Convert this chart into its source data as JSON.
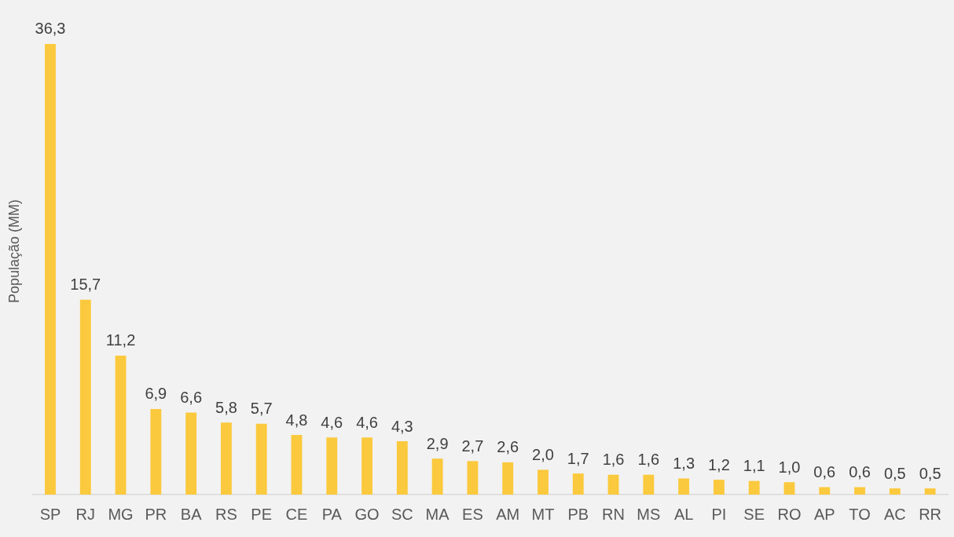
{
  "chart_data": {
    "type": "bar",
    "ylabel": "População (MM)",
    "categories": [
      "SP",
      "RJ",
      "MG",
      "PR",
      "BA",
      "RS",
      "PE",
      "CE",
      "PA",
      "GO",
      "SC",
      "MA",
      "ES",
      "AM",
      "MT",
      "PB",
      "RN",
      "MS",
      "AL",
      "PI",
      "SE",
      "RO",
      "AP",
      "TO",
      "AC",
      "RR"
    ],
    "values": [
      36.3,
      15.7,
      11.2,
      6.9,
      6.6,
      5.8,
      5.7,
      4.8,
      4.6,
      4.6,
      4.3,
      2.9,
      2.7,
      2.6,
      2.0,
      1.7,
      1.6,
      1.6,
      1.3,
      1.2,
      1.1,
      1.0,
      0.6,
      0.6,
      0.5,
      0.5
    ],
    "value_labels": [
      "36,3",
      "15,7",
      "11,2",
      "6,9",
      "6,6",
      "5,8",
      "5,7",
      "4,8",
      "4,6",
      "4,6",
      "4,3",
      "2,9",
      "2,7",
      "2,6",
      "2,0",
      "1,7",
      "1,6",
      "1,6",
      "1,3",
      "1,2",
      "1,1",
      "1,0",
      "0,6",
      "0,6",
      "0,5",
      "0,5"
    ],
    "color": "#fbc93d",
    "grid": false,
    "legend": false
  }
}
